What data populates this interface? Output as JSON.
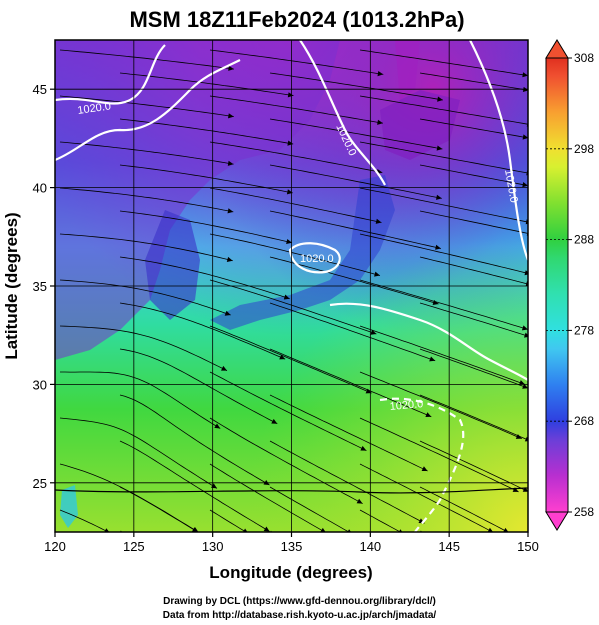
{
  "chart_data": {
    "type": "heatmap",
    "title": "MSM 18Z11Feb2024 (1013.2hPa)",
    "xlabel": "Longitude (degrees)",
    "ylabel": "Latitude  (degrees)",
    "xlim": [
      120,
      150
    ],
    "ylim": [
      22.5,
      47.5
    ],
    "xticks": [
      120,
      125,
      130,
      135,
      140,
      145,
      150
    ],
    "xtick_labels": [
      "120",
      "125",
      "130",
      "135",
      "140",
      "145",
      "150"
    ],
    "yticks": [
      25,
      30,
      35,
      40,
      45
    ],
    "ytick_labels": [
      "25",
      "30",
      "35",
      "40",
      "45"
    ],
    "grid": true,
    "grid_spacing_deg": 5,
    "colorbar": {
      "range": [
        258,
        308
      ],
      "ticks": [
        258,
        268,
        278,
        288,
        298,
        308
      ],
      "tick_labels": [
        "258",
        "268",
        "278",
        "288",
        "298",
        "308"
      ],
      "colors": {
        "258": "#ff3fcf",
        "262": "#b82fd0",
        "266": "#6a3fd8",
        "268": "#2f3fe0",
        "272": "#2f80f0",
        "276": "#40c8f0",
        "278": "#30e0e0",
        "282": "#30e0b0",
        "286": "#30d870",
        "288": "#30d040",
        "292": "#80e030",
        "296": "#d8f030",
        "298": "#f0e030",
        "302": "#f8a030",
        "306": "#f05030",
        "308": "#e03020"
      }
    },
    "contour_labels": [
      {
        "text": "1020.0"
      },
      {
        "text": "1020.0"
      },
      {
        "text": "1020.0"
      },
      {
        "text": "1020.0"
      },
      {
        "text": "1020.0"
      }
    ]
  },
  "footer": {
    "line1": "Drawing by DCL (https://www.gfd-dennou.org/library/dcl/)",
    "line2": "Data from http://database.rish.kyoto-u.ac.jp/arch/jmadata/"
  }
}
